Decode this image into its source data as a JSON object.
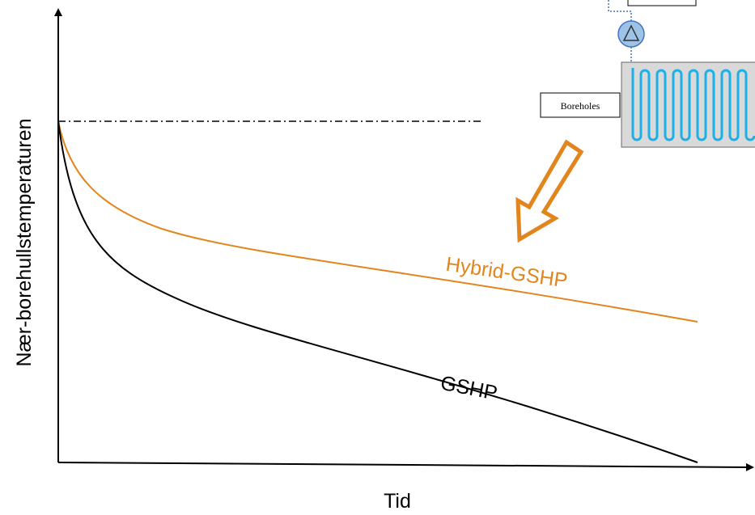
{
  "axes": {
    "y_label": "Nær-borehullstemperaturen",
    "x_label": "Tid"
  },
  "curves": [
    {
      "label": "Hybrid-GSHP"
    },
    {
      "label": "GSHP"
    }
  ],
  "inset": {
    "label": "Boreholes"
  }
}
